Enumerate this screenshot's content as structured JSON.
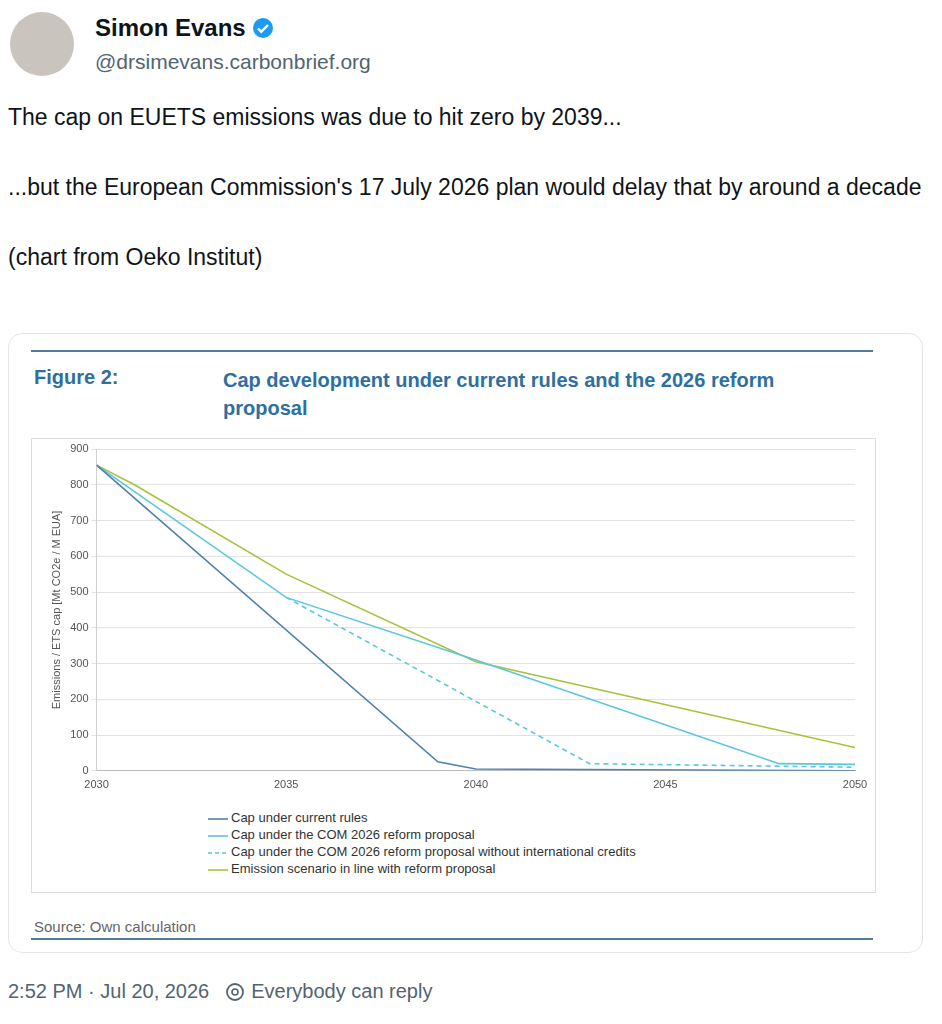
{
  "post": {
    "name": "Simon Evans",
    "handle": "@drsimevans.carbonbrief.org",
    "text": [
      "The cap on EUETS emissions was due to hit zero by 2039...",
      "...but the European Commission's 17 July 2026 plan would delay that by around a decade",
      "(chart from Oeko Institut)"
    ],
    "time": "2:52 PM · Jul 20, 2026",
    "reply_setting": "Everybody can reply"
  },
  "chart_data": {
    "type": "line",
    "figure_label": "Figure 2:",
    "title": "Cap development under current rules and the 2026 reform proposal",
    "y_label": "Emissions / ETS cap [Mt CO2e / M EUA]",
    "source": "Source: Own calculation",
    "xlim": [
      2030,
      2050
    ],
    "xticks": [
      2030,
      2035,
      2040,
      2045,
      2050
    ],
    "ylim": [
      0,
      900
    ],
    "yticks": [
      0,
      100,
      200,
      300,
      400,
      500,
      600,
      700,
      800,
      900
    ],
    "grid": true,
    "legend": "bottom",
    "series": [
      {
        "name": "Cap under current rules",
        "color": "#4f82ab",
        "line_style": "solid",
        "x": [
          2030,
          2039,
          2040,
          2050
        ],
        "values": [
          855,
          25,
          5,
          0
        ]
      },
      {
        "name": "Cap under the COM 2026 reform proposal",
        "color": "#5cc6e0",
        "line_style": "solid",
        "x": [
          2030,
          2035,
          2040,
          2048,
          2050
        ],
        "values": [
          855,
          485,
          310,
          20,
          18
        ]
      },
      {
        "name": "Cap under the COM 2026 reform proposal without international credits",
        "color": "#5cc6e0",
        "line_style": "dashed",
        "x": [
          2035,
          2043,
          2050
        ],
        "values": [
          485,
          20,
          10
        ]
      },
      {
        "name": "Emission scenario in line with reform proposal",
        "color": "#a6c23c",
        "line_style": "solid",
        "x": [
          2030,
          2031,
          2035,
          2040,
          2050
        ],
        "values": [
          855,
          800,
          550,
          305,
          65
        ]
      }
    ]
  }
}
